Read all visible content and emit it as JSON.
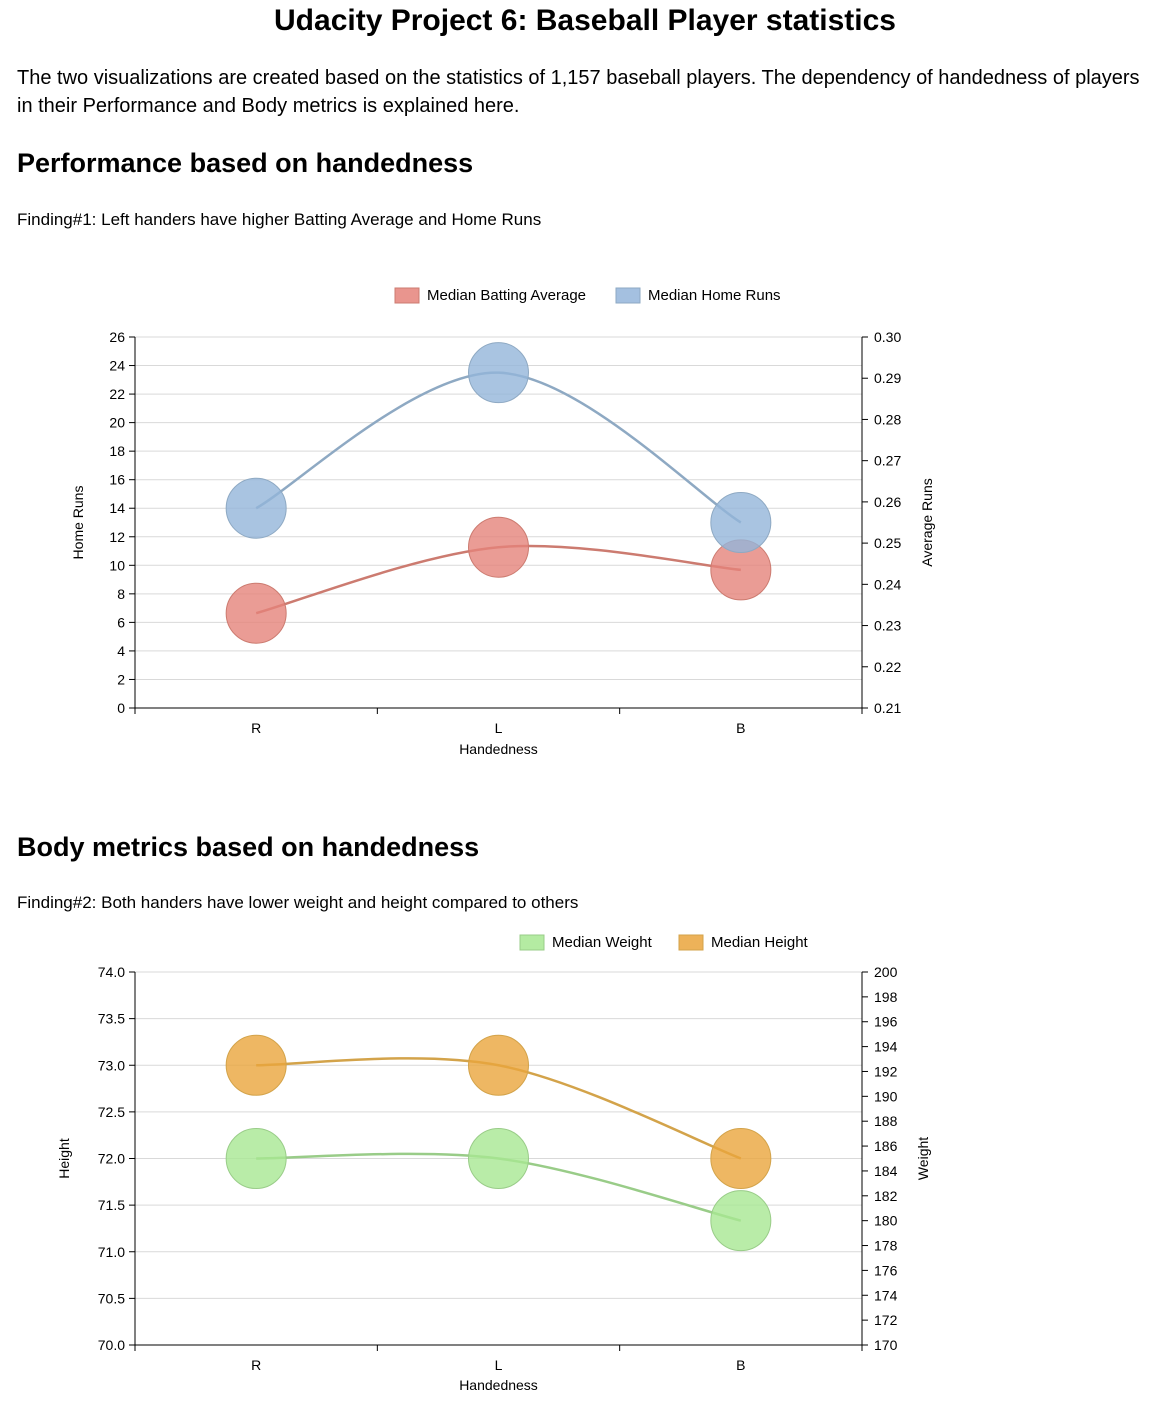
{
  "page": {
    "title": "Udacity Project 6: Baseball Player statistics",
    "intro": "The two visualizations are created based on the statistics of 1,157 baseball players. The dependency of handedness of players in their Performance and Body metrics is explained here."
  },
  "sections": [
    {
      "heading": "Performance based on handedness",
      "finding": "Finding#1: Left handers have higher Batting Average and Home Runs"
    },
    {
      "heading": "Body metrics based on handedness",
      "finding": "Finding#2: Both handers have lower weight and height compared to others"
    }
  ],
  "chart_data": [
    {
      "type": "line",
      "markers": "bubble",
      "categories": [
        "R",
        "L",
        "B"
      ],
      "xlabel": "Handedness",
      "left_axis": {
        "label": "Home Runs",
        "ylim": [
          0,
          26
        ],
        "ticks": [
          "0",
          "2",
          "4",
          "6",
          "8",
          "10",
          "12",
          "14",
          "16",
          "18",
          "20",
          "22",
          "24",
          "26"
        ]
      },
      "right_axis": {
        "label": "Average Runs",
        "ylim": [
          0.21,
          0.3
        ],
        "ticks": [
          "0.21",
          "0.22",
          "0.23",
          "0.24",
          "0.25",
          "0.26",
          "0.27",
          "0.28",
          "0.29",
          "0.30"
        ]
      },
      "grid": true,
      "legend_position": "top-center",
      "series": [
        {
          "name": "Median Batting Average",
          "axis": "right",
          "values": [
            0.233,
            0.249,
            0.2435
          ],
          "color": "#e5837a",
          "line_color": "#cc7b70"
        },
        {
          "name": "Median Home Runs",
          "axis": "left",
          "values": [
            14,
            23.5,
            13
          ],
          "color": "#94b5da",
          "line_color": "#8ea9c3"
        }
      ]
    },
    {
      "type": "line",
      "markers": "bubble",
      "categories": [
        "R",
        "L",
        "B"
      ],
      "xlabel": "Handedness",
      "left_axis": {
        "label": "Height",
        "ylim": [
          70,
          74
        ],
        "ticks": [
          "70.0",
          "70.5",
          "71.0",
          "71.5",
          "72.0",
          "72.5",
          "73.0",
          "73.5",
          "74.0"
        ]
      },
      "right_axis": {
        "label": "Weight",
        "ylim": [
          170,
          200
        ],
        "ticks": [
          "170",
          "172",
          "174",
          "176",
          "178",
          "180",
          "182",
          "184",
          "186",
          "188",
          "190",
          "192",
          "194",
          "196",
          "198",
          "200"
        ]
      },
      "grid": true,
      "legend_position": "top-right",
      "series": [
        {
          "name": "Median Weight",
          "axis": "right",
          "values": [
            185,
            185,
            180
          ],
          "color": "#a7e792",
          "line_color": "#99cc88"
        },
        {
          "name": "Median Height",
          "axis": "left",
          "values": [
            73,
            73,
            72
          ],
          "color": "#eaa53c",
          "line_color": "#d3a34a"
        }
      ]
    }
  ]
}
